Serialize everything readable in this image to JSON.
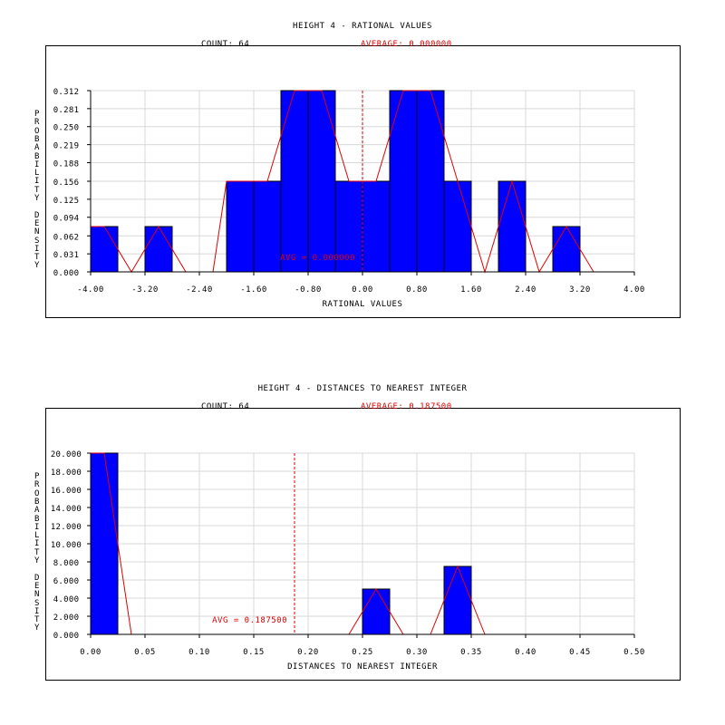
{
  "colors": {
    "bar": "#0000ff",
    "bar_edge": "#000000",
    "line": "#e00000",
    "grid": "#d8d8d8"
  },
  "chart_data": [
    {
      "type": "bar",
      "title": "HEIGHT 4 - RATIONAL VALUES",
      "count_label": "COUNT: 64",
      "average_label": "AVERAGE: 0.000000",
      "avg_marker_label": "AVG = 0.000000",
      "avg_value": 0.0,
      "xlabel": "RATIONAL VALUES",
      "ylabel": "PROBABILITY DENSITY",
      "xlim": [
        -4.0,
        4.0
      ],
      "ylim": [
        0.0,
        0.312
      ],
      "xticks": [
        -4.0,
        -3.2,
        -2.4,
        -1.6,
        -0.8,
        0.0,
        0.8,
        1.6,
        2.4,
        3.2,
        4.0
      ],
      "xtick_labels": [
        "-4.00",
        "-3.20",
        "-2.40",
        "-1.60",
        "-0.80",
        "0.00",
        "0.80",
        "1.60",
        "2.40",
        "3.20",
        "4.00"
      ],
      "yticks": [
        0.0,
        0.031,
        0.062,
        0.094,
        0.125,
        0.156,
        0.188,
        0.219,
        0.25,
        0.281,
        0.312
      ],
      "ytick_labels": [
        "0.000",
        "0.031",
        "0.062",
        "0.094",
        "0.125",
        "0.156",
        "0.188",
        "0.219",
        "0.250",
        "0.281",
        "0.312"
      ],
      "bin_width": 0.4,
      "bins": [
        {
          "x0": -4.0,
          "value": 0.078
        },
        {
          "x0": -3.2,
          "value": 0.078
        },
        {
          "x0": -2.0,
          "value": 0.156
        },
        {
          "x0": -1.6,
          "value": 0.156
        },
        {
          "x0": -1.2,
          "value": 0.312
        },
        {
          "x0": -0.8,
          "value": 0.312
        },
        {
          "x0": -0.4,
          "value": 0.156
        },
        {
          "x0": 0.0,
          "value": 0.156
        },
        {
          "x0": 0.4,
          "value": 0.312
        },
        {
          "x0": 0.8,
          "value": 0.312
        },
        {
          "x0": 1.2,
          "value": 0.156
        },
        {
          "x0": 2.0,
          "value": 0.156
        },
        {
          "x0": 2.8,
          "value": 0.078
        }
      ],
      "line": {
        "x": [
          -4.0,
          -3.8,
          -3.4,
          -3.0,
          -2.6,
          -2.2,
          -2.0,
          -1.8,
          -1.4,
          -1.0,
          -0.6,
          -0.2,
          0.2,
          0.6,
          1.0,
          1.4,
          1.8,
          2.2,
          2.6,
          3.0,
          3.4
        ],
        "y": [
          0.078,
          0.078,
          0.0,
          0.078,
          0.0,
          0.0,
          0.156,
          0.156,
          0.156,
          0.312,
          0.312,
          0.156,
          0.156,
          0.312,
          0.312,
          0.156,
          0.0,
          0.156,
          0.0,
          0.078,
          0.0
        ]
      }
    },
    {
      "type": "bar",
      "title": "HEIGHT 4 - DISTANCES TO NEAREST INTEGER",
      "count_label": "COUNT: 64",
      "average_label": "AVERAGE: 0.187500",
      "avg_marker_label": "AVG = 0.187500",
      "avg_value": 0.1875,
      "xlabel": "DISTANCES TO NEAREST INTEGER",
      "ylabel": "PROBABILITY DENSITY",
      "xlim": [
        0.0,
        0.5
      ],
      "ylim": [
        0.0,
        20.0
      ],
      "xticks": [
        0.0,
        0.05,
        0.1,
        0.15,
        0.2,
        0.25,
        0.3,
        0.35,
        0.4,
        0.45,
        0.5
      ],
      "xtick_labels": [
        "0.00",
        "0.05",
        "0.10",
        "0.15",
        "0.20",
        "0.25",
        "0.30",
        "0.35",
        "0.40",
        "0.45",
        "0.50"
      ],
      "yticks": [
        0.0,
        2.0,
        4.0,
        6.0,
        8.0,
        10.0,
        12.0,
        14.0,
        16.0,
        18.0,
        20.0
      ],
      "ytick_labels": [
        "0.000",
        "2.000",
        "4.000",
        "6.000",
        "8.000",
        "10.000",
        "12.000",
        "14.000",
        "16.000",
        "18.000",
        "20.000"
      ],
      "bin_width": 0.025,
      "bins": [
        {
          "x0": 0.0,
          "value": 20.0
        },
        {
          "x0": 0.25,
          "value": 5.0
        },
        {
          "x0": 0.325,
          "value": 7.5
        }
      ],
      "line": {
        "x": [
          0.0,
          0.0125,
          0.0375,
          0.2375,
          0.2625,
          0.2875,
          0.3125,
          0.3375,
          0.3625
        ],
        "y": [
          20.0,
          20.0,
          0.0,
          0.0,
          5.0,
          0.0,
          0.0,
          7.5,
          0.0
        ]
      }
    }
  ]
}
